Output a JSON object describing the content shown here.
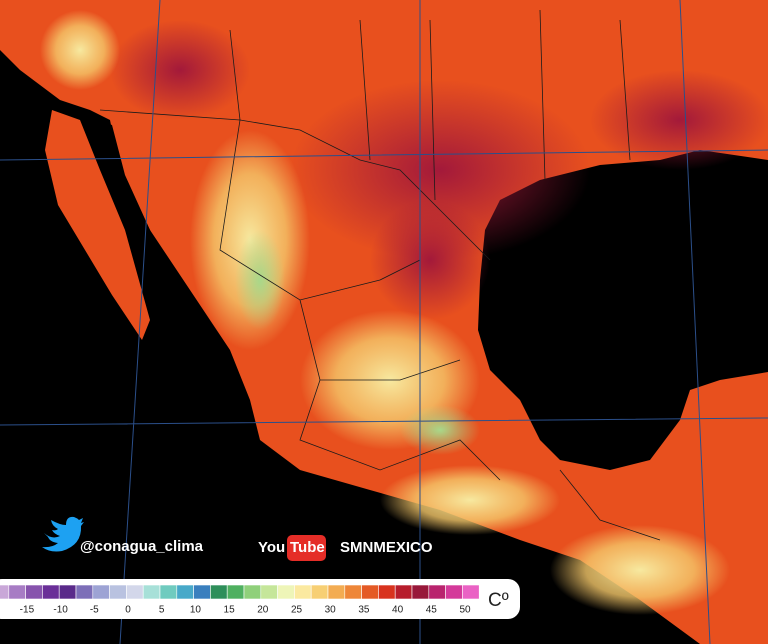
{
  "social": {
    "twitter": "@conagua_clima",
    "youtube_logo_you": "You",
    "youtube_logo_tube": "Tube",
    "youtube": "SMNMEXICO"
  },
  "legend": {
    "labels": [
      -15,
      -10,
      -5,
      0,
      5,
      10,
      15,
      20,
      25,
      30,
      35,
      40,
      45,
      50
    ],
    "unit": "Cº",
    "colors": [
      "#c9a7d8",
      "#a77cc4",
      "#8753ad",
      "#6a2f98",
      "#5a2a8a",
      "#7d6fb8",
      "#9da3d4",
      "#b9c2e0",
      "#d3d7ea",
      "#a7e0d8",
      "#6fcbbf",
      "#48a9c9",
      "#3a7fbe",
      "#2e8f5a",
      "#4fb060",
      "#8fd07a",
      "#c5e69a",
      "#eef5b8",
      "#fbe9a0",
      "#f7cf74",
      "#f3ac52",
      "#ee8638",
      "#e45a25",
      "#d8331e",
      "#b71d2c",
      "#98183a",
      "#b9246e",
      "#d43a9a",
      "#ea62c4"
    ]
  }
}
